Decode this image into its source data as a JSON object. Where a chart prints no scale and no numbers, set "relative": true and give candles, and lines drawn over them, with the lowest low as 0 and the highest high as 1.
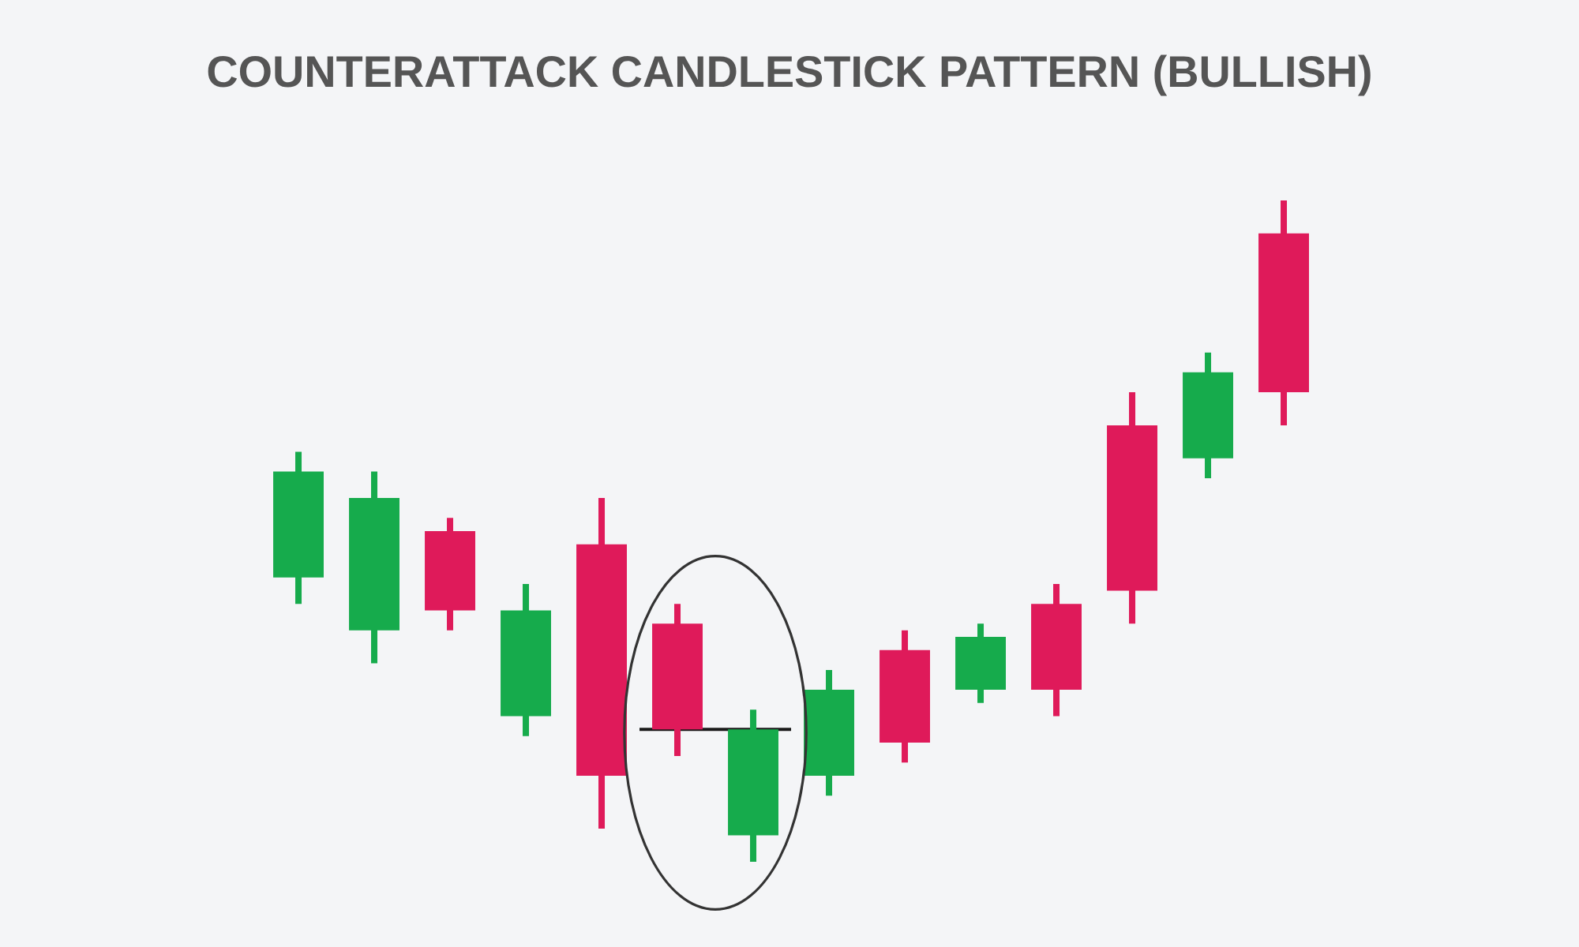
{
  "chart_data": {
    "type": "candlestick",
    "title": "COUNTERATTACK CANDLESTICK PATTERN (BULLISH)",
    "categories": [
      null,
      null,
      null,
      null,
      null,
      null,
      null,
      null,
      null,
      null,
      null,
      null,
      null,
      null
    ],
    "ohlc": [
      [
        0.43,
        0.62,
        0.39,
        0.59
      ],
      [
        0.35,
        0.59,
        0.3,
        0.55
      ],
      [
        0.5,
        0.52,
        0.35,
        0.38
      ],
      [
        0.22,
        0.42,
        0.19,
        0.38
      ],
      [
        0.48,
        0.55,
        0.05,
        0.13
      ],
      [
        0.36,
        0.39,
        0.16,
        0.2
      ],
      [
        0.04,
        0.23,
        0,
        0.2
      ],
      [
        0.13,
        0.29,
        0.1,
        0.26
      ],
      [
        0.32,
        0.35,
        0.15,
        0.18
      ],
      [
        0.26,
        0.36,
        0.24,
        0.34
      ],
      [
        0.39,
        0.42,
        0.22,
        0.26
      ],
      [
        0.66,
        0.71,
        0.36,
        0.41
      ],
      [
        0.61,
        0.77,
        0.58,
        0.74
      ],
      [
        0.95,
        1,
        0.66,
        0.71
      ]
    ],
    "colors": [
      "#16ab4c",
      "#16ab4c",
      "#df1a5a",
      "#16ab4c",
      "#df1a5a",
      "#df1a5a",
      "#16ab4c",
      "#16ab4c",
      "#df1a5a",
      "#16ab4c",
      "#df1a5a",
      "#df1a5a",
      "#16ab4c",
      "#df1a5a"
    ],
    "relative": true,
    "ref_lines": [
      {
        "axis": "y",
        "value": 0.2,
        "color": "#1a1a1a"
      }
    ]
  }
}
